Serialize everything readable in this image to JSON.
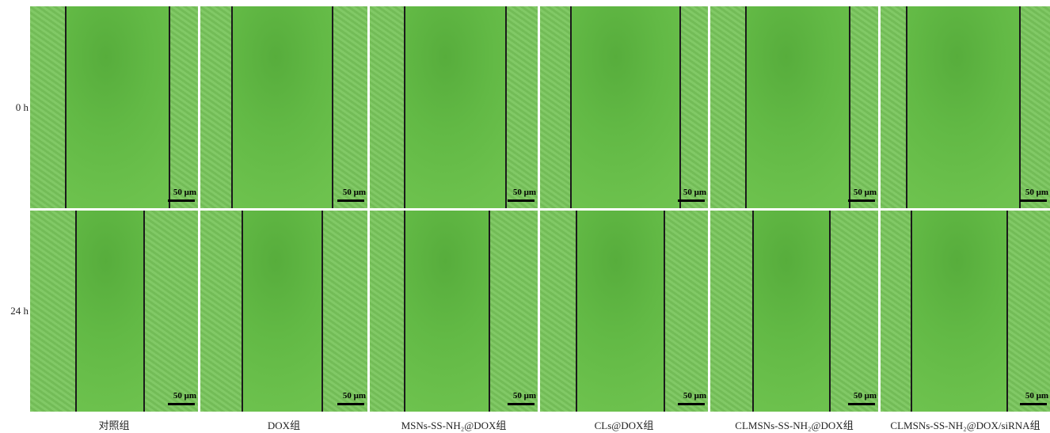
{
  "row_labels": [
    "0 h",
    "24 h"
  ],
  "column_labels": [
    "对照组",
    "DOX组",
    "MSNs-SS-NH₂@DOX组",
    "CLs@DOX组",
    "CLMSNs-SS-NH₂@DOX组",
    "CLMSNs-SS-NH₂@DOX/siRNA组"
  ],
  "panels": [
    [
      {
        "scale_bar": "50 μm"
      },
      {
        "scale_bar": "50 μm"
      },
      {
        "scale_bar": "50 μm"
      },
      {
        "scale_bar": "50 μm"
      },
      {
        "scale_bar": "50 μm"
      },
      {
        "scale_bar": "50 μm"
      }
    ],
    [
      {
        "scale_bar": "50 μm"
      },
      {
        "scale_bar": "50 μm"
      },
      {
        "scale_bar": "50 μm"
      },
      {
        "scale_bar": "50 μm"
      },
      {
        "scale_bar": "50 μm"
      },
      {
        "scale_bar": "50 μm"
      }
    ]
  ]
}
